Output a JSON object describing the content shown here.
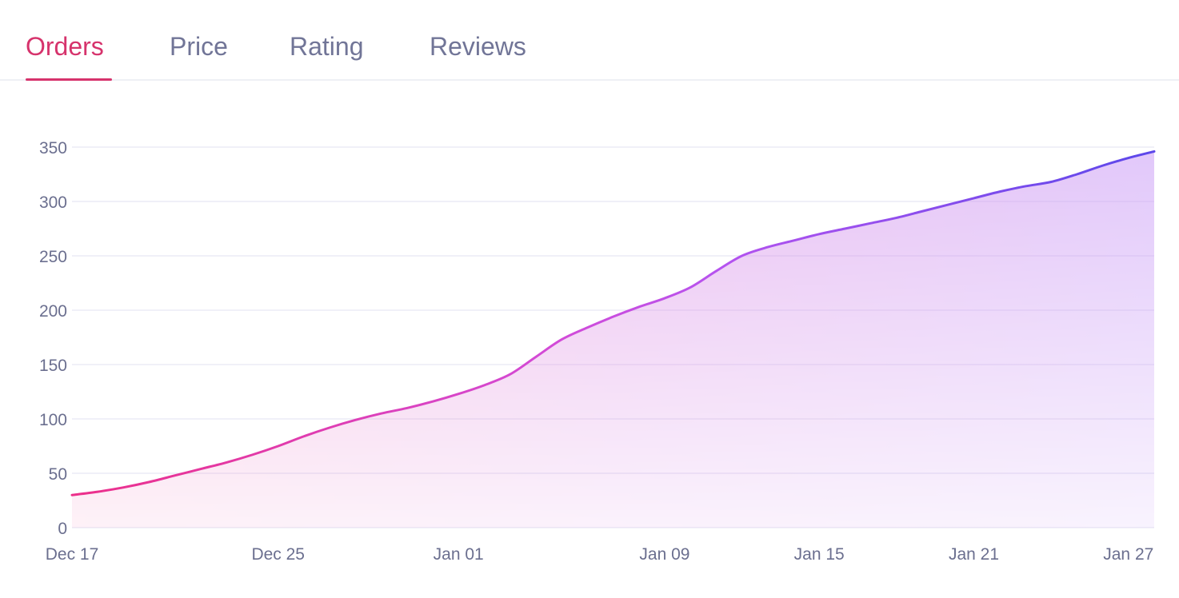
{
  "tabs": [
    {
      "label": "Orders",
      "active": true
    },
    {
      "label": "Price",
      "active": false
    },
    {
      "label": "Rating",
      "active": false
    },
    {
      "label": "Reviews",
      "active": false
    }
  ],
  "colors": {
    "accent": "#d6336c",
    "tab_inactive": "#717597",
    "line_start": "#ec2f8a",
    "line_end": "#5b47ea",
    "grid": "#ecebf6",
    "axis_text": "#6b6f8f"
  },
  "chart_data": {
    "type": "area",
    "title": "",
    "xlabel": "",
    "ylabel": "",
    "ylim": [
      0,
      350
    ],
    "yticks": [
      0,
      50,
      100,
      150,
      200,
      250,
      300,
      350
    ],
    "xlim": [
      0,
      42
    ],
    "xticks": [
      {
        "x": 0,
        "label": "Dec 17"
      },
      {
        "x": 8,
        "label": "Dec 25"
      },
      {
        "x": 15,
        "label": "Jan 01"
      },
      {
        "x": 23,
        "label": "Jan 09"
      },
      {
        "x": 29,
        "label": "Jan 15"
      },
      {
        "x": 35,
        "label": "Jan 21"
      },
      {
        "x": 41,
        "label": "Jan 27"
      }
    ],
    "grid": true,
    "series": [
      {
        "name": "Orders",
        "x": [
          0,
          1,
          2,
          3,
          4,
          5,
          6,
          7,
          8,
          9,
          10,
          11,
          12,
          13,
          14,
          15,
          16,
          17,
          18,
          19,
          20,
          21,
          22,
          23,
          24,
          25,
          26,
          27,
          28,
          29,
          30,
          31,
          32,
          33,
          34,
          35,
          36,
          37,
          38,
          39,
          40,
          41,
          42
        ],
        "values": [
          30,
          33,
          37,
          42,
          48,
          54,
          60,
          67,
          75,
          84,
          92,
          99,
          105,
          110,
          116,
          123,
          131,
          141,
          157,
          173,
          184,
          194,
          203,
          211,
          221,
          236,
          250,
          258,
          264,
          270,
          275,
          280,
          285,
          291,
          297,
          303,
          309,
          314,
          318,
          325,
          333,
          340,
          346
        ]
      }
    ]
  }
}
